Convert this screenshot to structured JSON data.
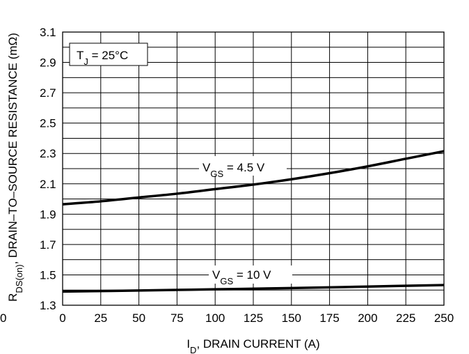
{
  "chart_data": {
    "type": "line",
    "xlabel": {
      "main": "I",
      "sub": "D",
      "rest": ", DRAIN CURRENT (A)"
    },
    "ylabel": {
      "main": "R",
      "sub": "DS(on)",
      "rest": ", DRAIN–TO–SOURCE RESISTANCE (mΩ)"
    },
    "extra_tick": "0",
    "xlim": [
      0,
      250
    ],
    "ylim": [
      1.3,
      3.1
    ],
    "xticks": [
      "0",
      "25",
      "50",
      "75",
      "100",
      "125",
      "150",
      "175",
      "200",
      "225",
      "250"
    ],
    "yticks": [
      "1.3",
      "1.5",
      "1.7",
      "1.9",
      "2.1",
      "2.3",
      "2.5",
      "2.7",
      "2.9",
      "3.1"
    ],
    "annotation": {
      "main": "T",
      "sub": "J",
      "rest": " = 25°C"
    },
    "grid": true,
    "series": [
      {
        "name": "V_GS = 4.5 V",
        "label": {
          "main": "V",
          "sub": "GS",
          "rest": " = 4.5 V"
        },
        "x": [
          0,
          25,
          50,
          75,
          100,
          125,
          150,
          175,
          200,
          225,
          250
        ],
        "y": [
          1.965,
          1.985,
          2.01,
          2.035,
          2.065,
          2.095,
          2.13,
          2.17,
          2.215,
          2.265,
          2.315
        ]
      },
      {
        "name": "V_GS = 10 V",
        "label": {
          "main": "V",
          "sub": "GS",
          "rest": " = 10 V"
        },
        "x": [
          0,
          50,
          100,
          150,
          200,
          250
        ],
        "y": [
          1.39,
          1.397,
          1.405,
          1.413,
          1.423,
          1.433
        ]
      }
    ]
  }
}
